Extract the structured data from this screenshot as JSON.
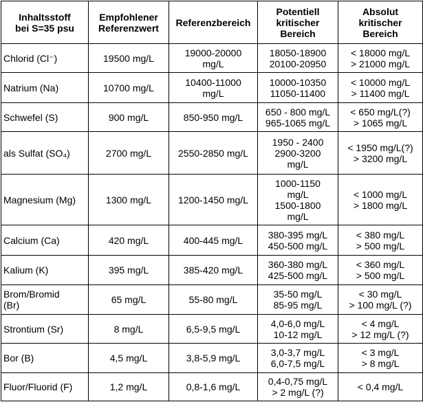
{
  "table": {
    "header": [
      [
        "Inhaltsstoff",
        "bei S=35 psu"
      ],
      [
        "Empfohlener",
        "Referenzwert"
      ],
      [
        "Referenzbereich"
      ],
      [
        "Potentiell",
        "kritischer",
        "Bereich"
      ],
      [
        "Absolut",
        "kritischer",
        "Bereich"
      ]
    ],
    "rows": [
      [
        [
          "Chlorid (Cl⁻)"
        ],
        [
          "19500 mg/L"
        ],
        [
          "19000-20000",
          "mg/L"
        ],
        [
          "18050-18900",
          "20100-20950"
        ],
        [
          "< 18000 mg/L",
          "> 21000 mg/L"
        ]
      ],
      [
        [
          "Natrium (Na)"
        ],
        [
          "10700 mg/L"
        ],
        [
          "10400-11000",
          "mg/L"
        ],
        [
          "10000-10350",
          "11050-11400"
        ],
        [
          "< 10000 mg/L",
          "> 11400 mg/L"
        ]
      ],
      [
        [
          "Schwefel (S)"
        ],
        [
          "900 mg/L"
        ],
        [
          "850-950 mg/L"
        ],
        [
          "650 - 800 mg/L",
          "965-1065 mg/L"
        ],
        [
          "< 650 mg/L(?)",
          "> 1065 mg/L"
        ]
      ],
      [
        [
          "als Sulfat (SO₄)"
        ],
        [
          "2700 mg/L"
        ],
        [
          "2550-2850 mg/L"
        ],
        [
          "1950 - 2400",
          "2900-3200",
          "mg/L"
        ],
        [
          "< 1950 mg/L(?)",
          "> 3200 mg/L"
        ]
      ],
      [
        [
          "Magnesium (Mg)"
        ],
        [
          "1300 mg/L"
        ],
        [
          "1200-1450 mg/L"
        ],
        [
          "1000-1150",
          "mg/L",
          "1500-1800",
          "mg/L"
        ],
        [
          "< 1000 mg/L",
          "> 1800 mg/L"
        ]
      ],
      [
        [
          "Calcium (Ca)"
        ],
        [
          "420 mg/L"
        ],
        [
          "400-445 mg/L"
        ],
        [
          "380-395 mg/L",
          "450-500 mg/L"
        ],
        [
          "< 380 mg/L",
          "> 500 mg/L"
        ]
      ],
      [
        [
          "Kalium (K)"
        ],
        [
          "395 mg/L"
        ],
        [
          "385-420 mg/L"
        ],
        [
          "360-380 mg/L",
          "425-500 mg/L"
        ],
        [
          "< 360 mg/L",
          "> 500 mg/L"
        ]
      ],
      [
        [
          "Brom/Bromid",
          "(Br)"
        ],
        [
          "65 mg/L"
        ],
        [
          "55-80 mg/L"
        ],
        [
          "35-50 mg/L",
          "85-95 mg/L"
        ],
        [
          "< 30 mg/L",
          "> 100 mg/L (?)"
        ]
      ],
      [
        [
          "Strontium (Sr)"
        ],
        [
          "8 mg/L"
        ],
        [
          "6,5-9,5 mg/L"
        ],
        [
          "4,0-6,0 mg/L",
          "10-12 mg/L"
        ],
        [
          "< 4 mg/L",
          "> 12 mg/L (?)"
        ]
      ],
      [
        [
          "Bor (B)"
        ],
        [
          "4,5 mg/L"
        ],
        [
          "3,8-5,9 mg/L"
        ],
        [
          "3,0-3,7 mg/L",
          "6,0-7,5 mg/L"
        ],
        [
          "< 3 mg/L",
          "> 8 mg/L"
        ]
      ],
      [
        [
          "Fluor/Fluorid (F)"
        ],
        [
          "1,2 mg/L"
        ],
        [
          "0,8-1,6 mg/L"
        ],
        [
          "0,4-0,75 mg/L",
          "> 2 mg/L (?)"
        ],
        [
          "< 0,4 mg/L"
        ]
      ]
    ]
  }
}
